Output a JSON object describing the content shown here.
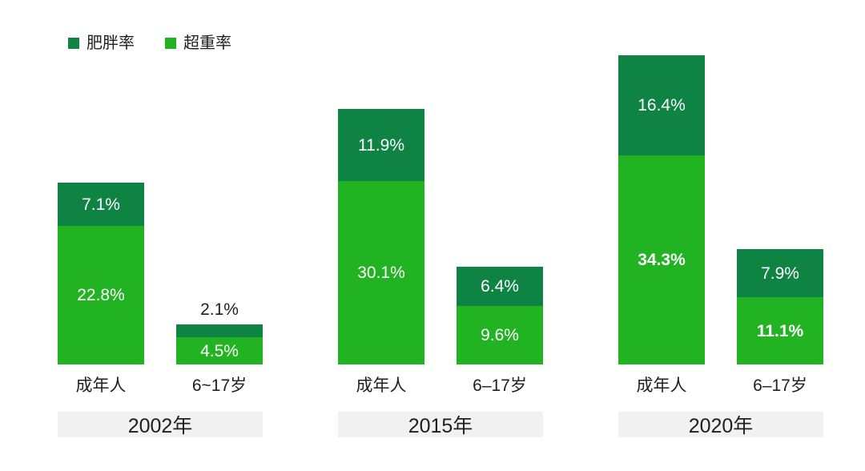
{
  "page": {
    "background": "#FFFFFF"
  },
  "colors": {
    "obesity": "#0E8343",
    "overweight": "#22B322",
    "year_band_bg": "#F1F1F2",
    "axis_text": "#1F1F1F",
    "bar_label_text": "#FFFFFF"
  },
  "legend": {
    "items": [
      {
        "label": "肥胖率",
        "series": "obesity"
      },
      {
        "label": "超重率",
        "series": "overweight"
      }
    ]
  },
  "chart_data": {
    "type": "bar",
    "stacked": true,
    "orientation": "vertical",
    "value_unit": "%",
    "legend_position": "top-left",
    "grid": false,
    "axes_shown": false,
    "series": [
      {
        "name": "肥胖率",
        "key": "obesity",
        "color": "#0E8343"
      },
      {
        "name": "超重率",
        "key": "overweight",
        "color": "#22B322"
      }
    ],
    "groups": [
      {
        "year_label": "2002年",
        "bars": [
          {
            "category": "成年人",
            "segments": [
              {
                "series": "obesity",
                "value": 7.1,
                "label": "7.1%",
                "label_position": "inside",
                "bold": false
              },
              {
                "series": "overweight",
                "value": 22.8,
                "label": "22.8%",
                "label_position": "inside",
                "bold": false
              }
            ]
          },
          {
            "category": "6~17岁",
            "segments": [
              {
                "series": "obesity",
                "value": 2.1,
                "label": "2.1%",
                "label_position": "above",
                "bold": false
              },
              {
                "series": "overweight",
                "value": 4.5,
                "label": "4.5%",
                "label_position": "inside",
                "bold": false
              }
            ]
          }
        ]
      },
      {
        "year_label": "2015年",
        "bars": [
          {
            "category": "成年人",
            "segments": [
              {
                "series": "obesity",
                "value": 11.9,
                "label": "11.9%",
                "label_position": "inside",
                "bold": false
              },
              {
                "series": "overweight",
                "value": 30.1,
                "label": "30.1%",
                "label_position": "inside",
                "bold": false
              }
            ]
          },
          {
            "category": "6–17岁",
            "segments": [
              {
                "series": "obesity",
                "value": 6.4,
                "label": "6.4%",
                "label_position": "inside",
                "bold": false
              },
              {
                "series": "overweight",
                "value": 9.6,
                "label": "9.6%",
                "label_position": "inside",
                "bold": false
              }
            ]
          }
        ]
      },
      {
        "year_label": "2020年",
        "bars": [
          {
            "category": "成年人",
            "segments": [
              {
                "series": "obesity",
                "value": 16.4,
                "label": "16.4%",
                "label_position": "inside",
                "bold": false
              },
              {
                "series": "overweight",
                "value": 34.3,
                "label": "34.3%",
                "label_position": "inside",
                "bold": true
              }
            ]
          },
          {
            "category": "6–17岁",
            "segments": [
              {
                "series": "obesity",
                "value": 7.9,
                "label": "7.9%",
                "label_position": "inside",
                "bold": false
              },
              {
                "series": "overweight",
                "value": 11.1,
                "label": "11.1%",
                "label_position": "inside",
                "bold": true
              }
            ]
          }
        ]
      }
    ]
  }
}
